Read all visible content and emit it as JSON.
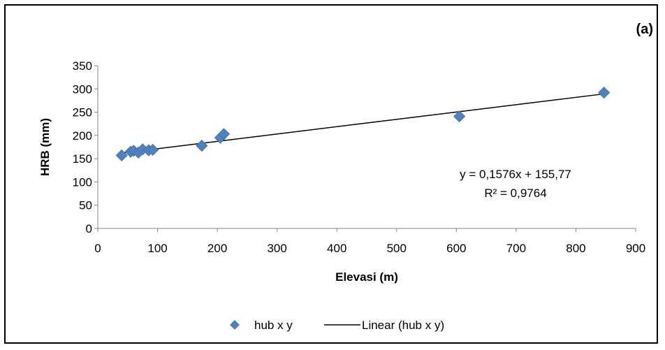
{
  "panel_label": "(a)",
  "chart_data": {
    "type": "scatter",
    "title": "",
    "xlabel": "Elevasi (m)",
    "ylabel": "HRB (mm)",
    "xlim": [
      0,
      900
    ],
    "ylim": [
      0,
      350
    ],
    "x_ticks": [
      "0",
      "100",
      "200",
      "300",
      "400",
      "500",
      "600",
      "700",
      "800",
      "900"
    ],
    "y_ticks": [
      "0",
      "50",
      "100",
      "150",
      "200",
      "250",
      "300",
      "350"
    ],
    "grid": false,
    "legend_position": "bottom",
    "series": [
      {
        "name": "hub x y",
        "kind": "scatter",
        "marker": "diamond",
        "color": "#4f81bd",
        "points": [
          {
            "x": 40,
            "y": 157
          },
          {
            "x": 55,
            "y": 165
          },
          {
            "x": 60,
            "y": 167
          },
          {
            "x": 68,
            "y": 163
          },
          {
            "x": 75,
            "y": 170
          },
          {
            "x": 85,
            "y": 168
          },
          {
            "x": 92,
            "y": 169
          },
          {
            "x": 174,
            "y": 178
          },
          {
            "x": 205,
            "y": 195
          },
          {
            "x": 211,
            "y": 203
          },
          {
            "x": 605,
            "y": 241
          },
          {
            "x": 847,
            "y": 292
          }
        ]
      },
      {
        "name": "Linear (hub x y)",
        "kind": "line",
        "color": "#000000",
        "slope": 0.1576,
        "intercept": 155.77,
        "x_range": [
          40,
          847
        ]
      }
    ],
    "annotations": {
      "equation": "y = 0,1576x + 155,77",
      "r_squared": "R² = 0,9764"
    }
  }
}
